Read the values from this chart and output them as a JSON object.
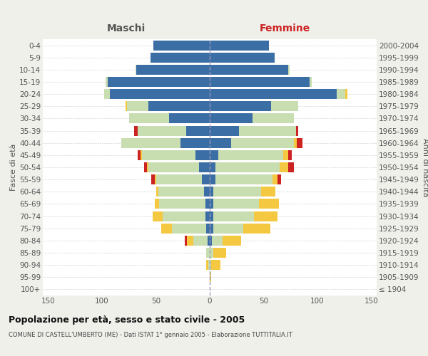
{
  "age_groups": [
    "100+",
    "95-99",
    "90-94",
    "85-89",
    "80-84",
    "75-79",
    "70-74",
    "65-69",
    "60-64",
    "55-59",
    "50-54",
    "45-49",
    "40-44",
    "35-39",
    "30-34",
    "25-29",
    "20-24",
    "15-19",
    "10-14",
    "5-9",
    "0-4"
  ],
  "birth_years": [
    "≤ 1904",
    "1905-1909",
    "1910-1914",
    "1915-1919",
    "1920-1924",
    "1925-1929",
    "1930-1934",
    "1935-1939",
    "1940-1944",
    "1945-1949",
    "1950-1954",
    "1955-1959",
    "1960-1964",
    "1965-1969",
    "1970-1974",
    "1975-1979",
    "1980-1984",
    "1985-1989",
    "1990-1994",
    "1995-1999",
    "2000-2004"
  ],
  "males": {
    "celibe": [
      0,
      0,
      0,
      0,
      2,
      3,
      4,
      4,
      5,
      7,
      10,
      13,
      27,
      22,
      38,
      57,
      93,
      95,
      68,
      55,
      52
    ],
    "coniugato": [
      0,
      0,
      1,
      3,
      13,
      32,
      40,
      43,
      43,
      43,
      47,
      50,
      55,
      45,
      37,
      20,
      5,
      2,
      1,
      0,
      0
    ],
    "vedovo": [
      0,
      0,
      2,
      0,
      6,
      10,
      9,
      4,
      2,
      1,
      1,
      1,
      0,
      0,
      0,
      1,
      0,
      0,
      0,
      0,
      0
    ],
    "divorziato": [
      0,
      0,
      0,
      0,
      2,
      0,
      0,
      0,
      0,
      3,
      3,
      3,
      0,
      3,
      0,
      0,
      0,
      0,
      0,
      0,
      0
    ]
  },
  "females": {
    "nubile": [
      0,
      0,
      0,
      0,
      2,
      3,
      3,
      3,
      3,
      5,
      5,
      8,
      20,
      27,
      40,
      57,
      118,
      93,
      73,
      60,
      55
    ],
    "coniugata": [
      0,
      0,
      1,
      3,
      10,
      28,
      38,
      43,
      45,
      53,
      60,
      60,
      58,
      53,
      38,
      25,
      8,
      2,
      1,
      0,
      0
    ],
    "vedova": [
      0,
      1,
      9,
      12,
      17,
      25,
      22,
      18,
      13,
      5,
      8,
      5,
      3,
      0,
      0,
      0,
      2,
      0,
      0,
      0,
      0
    ],
    "divorziata": [
      0,
      0,
      0,
      0,
      0,
      0,
      0,
      0,
      0,
      3,
      5,
      3,
      5,
      2,
      0,
      0,
      0,
      0,
      0,
      0,
      0
    ]
  },
  "colors": {
    "celibe": "#3b6ea5",
    "coniugato": "#c8ddb0",
    "vedovo": "#f5c842",
    "divorziato": "#cc2222"
  },
  "title": "Popolazione per età, sesso e stato civile - 2005",
  "subtitle": "COMUNE DI CASTELL'UMBERTO (ME) - Dati ISTAT 1° gennaio 2005 - Elaborazione TUTTITALIA.IT",
  "xlabel_left": "Maschi",
  "xlabel_right": "Femmine",
  "ylabel_left": "Fasce di età",
  "ylabel_right": "Anni di nascita",
  "xlim": 155,
  "background_color": "#f0f0eb",
  "plot_bg": "#ffffff"
}
